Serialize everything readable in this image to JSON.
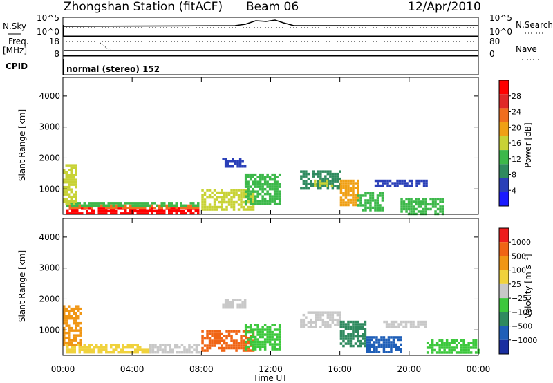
{
  "header": {
    "station": "Zhongshan Station (fitACF)",
    "beam": "Beam 06",
    "date": "12/Apr/2010"
  },
  "noise_panel": {
    "left_label": "N.Sky",
    "right_label": "N.Search",
    "left_ticks": [
      "10^5",
      "10^0"
    ],
    "right_ticks": [
      "10^5",
      "10^0"
    ]
  },
  "freq_panel": {
    "left_label": "Freq.",
    "left_unit": "[MHz]",
    "right_label": "Nave",
    "left_ticks": [
      "18",
      "8"
    ],
    "right_ticks": [
      "80",
      "0"
    ]
  },
  "cpid_panel": {
    "label": "CPID",
    "text": "normal (stereo) 152"
  },
  "colors": {
    "power_scale": [
      "#1a1aff",
      "#2a3fb8",
      "#2f8a5f",
      "#3cb84a",
      "#c8d235",
      "#f0a014",
      "#f06e1e",
      "#e02828",
      "#ff0000"
    ],
    "velocity_scale": [
      "#1a2ea0",
      "#1f5fb8",
      "#2f8a5f",
      "#3cc83c",
      "#c8c8c8",
      "#f0d23c",
      "#f09614",
      "#f06414",
      "#ee1c1c"
    ]
  },
  "chart_data": [
    {
      "type": "heatmap",
      "title": "",
      "xlabel": "",
      "ylabel": "Slant Range [km]",
      "x_ticks": [
        "00:00",
        "04:00",
        "08:00",
        "12:00",
        "16:00",
        "20:00",
        "00:00"
      ],
      "y_ticks": [
        "1000",
        "2000",
        "3000",
        "4000"
      ],
      "xlim_hours": [
        0,
        24
      ],
      "ylim_km": [
        180,
        4600
      ],
      "colorbar": {
        "label": "Power [dB]",
        "ticks": [
          "28",
          "24",
          "20",
          "16",
          "12",
          "8",
          "4"
        ],
        "range": [
          0,
          30
        ]
      },
      "regions": [
        {
          "t0": 0.2,
          "t1": 7.8,
          "r0": 200,
          "r1": 400,
          "value": 27
        },
        {
          "t0": 0.2,
          "t1": 7.8,
          "r0": 400,
          "r1": 500,
          "value": 22
        },
        {
          "t0": 0.2,
          "t1": 7.8,
          "r0": 500,
          "r1": 580,
          "value": 12
        },
        {
          "t0": 0.0,
          "t1": 0.8,
          "r0": 500,
          "r1": 1800,
          "value": 14
        },
        {
          "t0": 8.0,
          "t1": 11.0,
          "r0": 300,
          "r1": 1000,
          "value": 16
        },
        {
          "t0": 9.2,
          "t1": 10.5,
          "r0": 1700,
          "r1": 2000,
          "value": 6
        },
        {
          "t0": 10.5,
          "t1": 12.5,
          "r0": 500,
          "r1": 1500,
          "value": 10
        },
        {
          "t0": 13.7,
          "t1": 16.0,
          "r0": 1000,
          "r1": 1600,
          "value": 9
        },
        {
          "t0": 14.5,
          "t1": 15.5,
          "r0": 1100,
          "r1": 1300,
          "value": 16
        },
        {
          "t0": 16.0,
          "t1": 17.0,
          "r0": 500,
          "r1": 1300,
          "value": 17
        },
        {
          "t0": 17.0,
          "t1": 18.5,
          "r0": 300,
          "r1": 900,
          "value": 12
        },
        {
          "t0": 18.0,
          "t1": 21.0,
          "r0": 1100,
          "r1": 1300,
          "value": 6
        },
        {
          "t0": 19.5,
          "t1": 22.0,
          "r0": 200,
          "r1": 700,
          "value": 10
        }
      ]
    },
    {
      "type": "heatmap",
      "title": "",
      "xlabel": "Time UT",
      "ylabel": "Slant Range [km]",
      "x_ticks": [
        "00:00",
        "04:00",
        "08:00",
        "12:00",
        "16:00",
        "20:00",
        "00:00"
      ],
      "y_ticks": [
        "1000",
        "2000",
        "3000",
        "4000"
      ],
      "xlim_hours": [
        0,
        24
      ],
      "ylim_km": [
        180,
        4600
      ],
      "colorbar": {
        "label": "Velocity [m s⁻¹]",
        "ticks": [
          "1000",
          "500",
          "100",
          "25",
          "−25",
          "−100",
          "−500",
          "−1000"
        ],
        "range": [
          -1000,
          1000
        ]
      },
      "regions": [
        {
          "t0": 0.2,
          "t1": 5.0,
          "r0": 250,
          "r1": 550,
          "value": 150
        },
        {
          "t0": 5.0,
          "t1": 7.8,
          "r0": 250,
          "r1": 550,
          "value": 10
        },
        {
          "t0": 0.0,
          "t1": 1.0,
          "r0": 500,
          "r1": 1800,
          "value": 400
        },
        {
          "t0": 8.0,
          "t1": 11.0,
          "r0": 300,
          "r1": 1000,
          "value": 600
        },
        {
          "t0": 9.2,
          "t1": 10.5,
          "r0": 1700,
          "r1": 2000,
          "value": 80
        },
        {
          "t0": 10.5,
          "t1": 12.5,
          "r0": 400,
          "r1": 1200,
          "value": -300
        },
        {
          "t0": 13.7,
          "t1": 16.0,
          "r0": 1100,
          "r1": 1600,
          "value": 0
        },
        {
          "t0": 16.0,
          "t1": 17.5,
          "r0": 500,
          "r1": 1300,
          "value": -400
        },
        {
          "t0": 17.5,
          "t1": 19.5,
          "r0": 300,
          "r1": 800,
          "value": -600
        },
        {
          "t0": 18.5,
          "t1": 21.0,
          "r0": 1100,
          "r1": 1300,
          "value": 0
        },
        {
          "t0": 21.0,
          "t1": 24.0,
          "r0": 300,
          "r1": 700,
          "value": -200
        }
      ]
    }
  ]
}
